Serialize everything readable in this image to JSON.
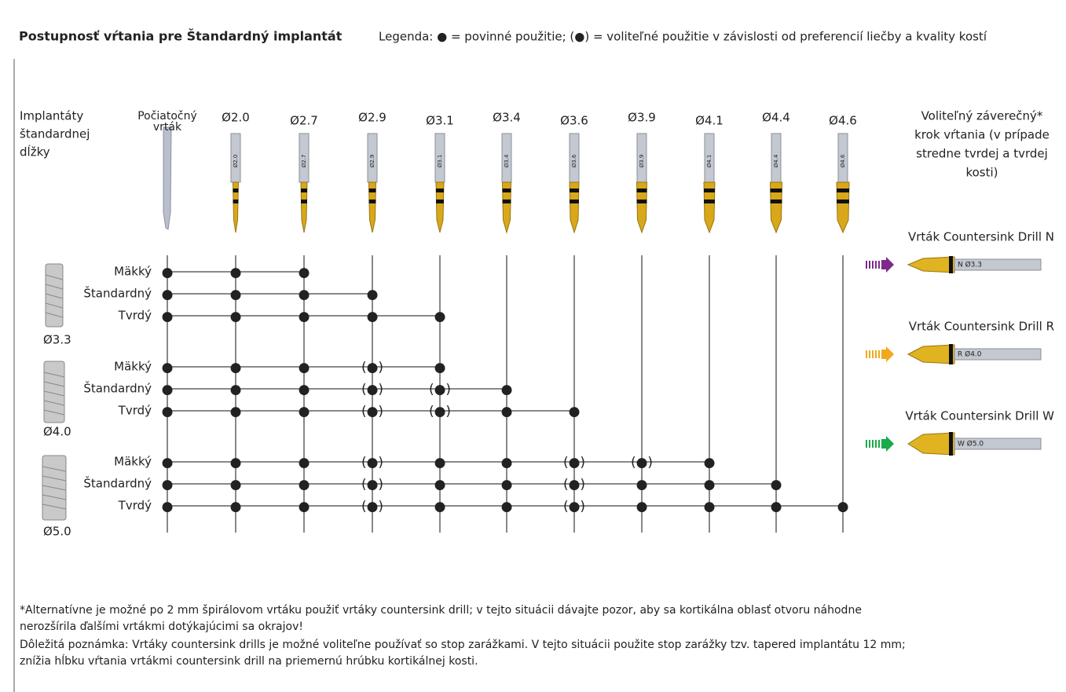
{
  "header": {
    "title": "Postupnosť vŕtania pre Štandardný implantát",
    "legend": "Legenda: ● = povinné použitie; (●) = voliteľné použitie v závislosti od preferencií liečby a kvality kostí"
  },
  "row_header": [
    "Implantáty",
    "štandardnej",
    "dĺžky"
  ],
  "columns": [
    [
      "Počiatočný",
      "vrták"
    ],
    [
      "Ø2.0"
    ],
    [
      "Ø2.7"
    ],
    [
      "Ø2.9"
    ],
    [
      "Ø3.1"
    ],
    [
      "Ø3.4"
    ],
    [
      "Ø3.6"
    ],
    [
      "Ø3.9"
    ],
    [
      "Ø4.1"
    ],
    [
      "Ø4.4"
    ],
    [
      "Ø4.6"
    ]
  ],
  "final_step": [
    "Voliteľný záverečný*",
    "krok vŕtania (v prípade",
    "stredne tvrdej a tvrdej",
    "kosti)"
  ],
  "groups": [
    {
      "implant": "Ø3.3",
      "color": "#7d2a8c",
      "rows": [
        {
          "label": "Mäkký",
          "cells": [
            "●",
            "●",
            "●"
          ]
        },
        {
          "label": "Štandardný",
          "cells": [
            "●",
            "●",
            "●",
            "●"
          ]
        },
        {
          "label": "Tvrdý",
          "cells": [
            "●",
            "●",
            "●",
            "●",
            "●"
          ]
        }
      ]
    },
    {
      "implant": "Ø4.0",
      "color": "#f2a81d",
      "rows": [
        {
          "label": "Mäkký",
          "cells": [
            "●",
            "●",
            "●",
            "(●)",
            "●"
          ]
        },
        {
          "label": "Štandardný",
          "cells": [
            "●",
            "●",
            "●",
            "(●)",
            "(●)",
            "●"
          ]
        },
        {
          "label": "Tvrdý",
          "cells": [
            "●",
            "●",
            "●",
            "(●)",
            "(●)",
            "●",
            "●"
          ]
        }
      ]
    },
    {
      "implant": "Ø5.0",
      "color": "#1aaa4a",
      "rows": [
        {
          "label": "Mäkký",
          "cells": [
            "●",
            "●",
            "●",
            "(●)",
            "●",
            "●",
            "(●)",
            "(●)",
            "●"
          ]
        },
        {
          "label": "Štandardný",
          "cells": [
            "●",
            "●",
            "●",
            "(●)",
            "●",
            "●",
            "(●)",
            "●",
            "●",
            "●"
          ]
        },
        {
          "label": "Tvrdý",
          "cells": [
            "●",
            "●",
            "●",
            "(●)",
            "●",
            "●",
            "(●)",
            "●",
            "●",
            "●",
            "●"
          ]
        }
      ]
    }
  ],
  "countersinks": [
    {
      "label": "Vrták Countersink Drill N",
      "marking": "N Ø3.3",
      "color": "#7d2a8c"
    },
    {
      "label": "Vrták Countersink Drill R",
      "marking": "R Ø4.0",
      "color": "#f2a81d"
    },
    {
      "label": "Vrták Countersink Drill W",
      "marking": "W Ø5.0",
      "color": "#1aaa4a"
    }
  ],
  "footnotes": [
    "*Alternatívne je možné po 2 mm špirálovom vrtáku použiť vrtáky countersink drill; v tejto situácii dávajte pozor, aby sa kortikálna oblasť otvoru náhodne",
    "nerozšírila ďalšími vrtákmi dotýkajúcimi sa okrajov!",
    "Dôležitá poznámka: Vrtáky countersink drills je možné voliteľne používať so stop zarážkami. V tejto situácii použite stop zarážky tzv. tapered implantátu 12 mm;",
    "znížia hĺbku vŕtania vrtákmi countersink drill na priemernú hrúbku kortikálnej kosti."
  ]
}
